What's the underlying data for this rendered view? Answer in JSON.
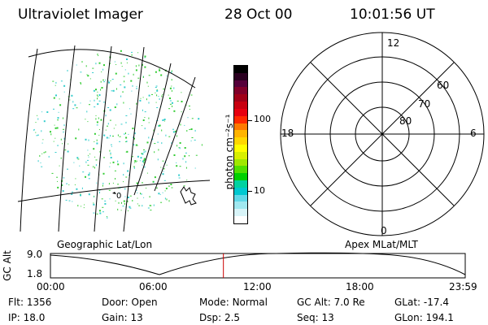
{
  "header": {
    "instrument": "Ultraviolet Imager",
    "date": "28 Oct 00",
    "time": "10:01:56 UT"
  },
  "left_panel": {
    "label": "Geographic Lat/Lon",
    "grid_marker": "0"
  },
  "colorbar": {
    "unit_label": "photon cm⁻²s⁻¹",
    "ticks": [
      "100",
      "10"
    ],
    "colors": [
      "#000000",
      "#2a0020",
      "#55003a",
      "#80002a",
      "#a00018",
      "#c80010",
      "#e60010",
      "#ff2a00",
      "#ff7a00",
      "#ffb400",
      "#ffd700",
      "#ffff00",
      "#d8f000",
      "#a0e800",
      "#50e000",
      "#00d000",
      "#00d2a0",
      "#00c8d0",
      "#60d8e8",
      "#a0e8f0",
      "#d8f4f8",
      "#ffffff"
    ]
  },
  "right_panel": {
    "label": "Apex MLat/MLT",
    "mlt_labels": {
      "top": "12",
      "right": "6",
      "bottom": "0",
      "left": "18"
    },
    "lat_labels": [
      "60",
      "70",
      "80"
    ]
  },
  "timeline": {
    "y_label": "GC Alt",
    "y_ticks": [
      "9.0",
      "1.8"
    ],
    "x_ticks": [
      "00:00",
      "06:00",
      "12:00",
      "18:00",
      "23:59"
    ],
    "current_time_fraction": 0.417
  },
  "info_grid": [
    [
      {
        "label": "Flt:",
        "value": "1356"
      },
      {
        "label": "Door:",
        "value": "Open"
      },
      {
        "label": "Mode:",
        "value": "Normal"
      },
      {
        "label": "GC Alt:",
        "value": "7.0 Re"
      },
      {
        "label": "GLat:",
        "value": "-17.4"
      }
    ],
    [
      {
        "label": "IP:",
        "value": "18.0"
      },
      {
        "label": "Gain:",
        "value": "13"
      },
      {
        "label": "Dsp:",
        "value": "2.5"
      },
      {
        "label": "Seq:",
        "value": "13"
      },
      {
        "label": "GLon:",
        "value": "194.1"
      }
    ]
  ],
  "colors": {
    "marker": "#cc0000",
    "dot_green": "#33cc33",
    "dot_cyan": "#33cccc"
  }
}
